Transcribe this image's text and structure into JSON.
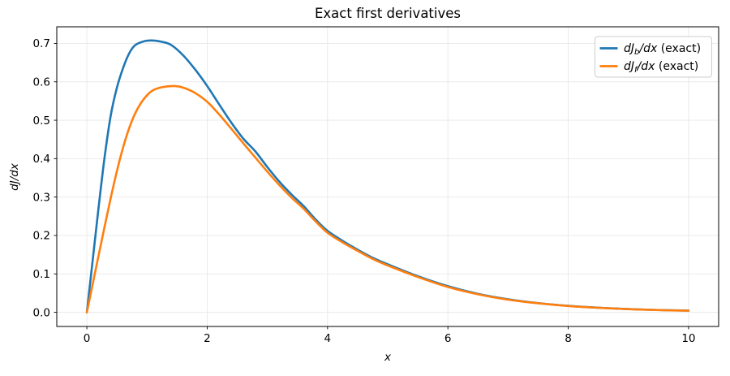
{
  "figure": {
    "background": "#ffffff"
  },
  "chart_data": {
    "type": "line",
    "title": "Exact first derivatives",
    "xlabel": "x",
    "ylabel": "dJ/dx",
    "xlim": [
      -0.5,
      10.5
    ],
    "ylim": [
      -0.0368,
      0.7432
    ],
    "x_ticks": [
      0,
      2,
      4,
      6,
      8,
      10
    ],
    "y_ticks": [
      "0.0",
      "0.1",
      "0.2",
      "0.3",
      "0.4",
      "0.5",
      "0.6",
      "0.7"
    ],
    "grid": true,
    "grid_color": "#e8e8e8",
    "axes_edge_color": "#000000",
    "legend_position": "upper right",
    "legend_edge_color": "#cccccc",
    "legend_background": "#ffffff",
    "series": [
      {
        "name": "dJb/dx (exact)",
        "color": "#1f77b4",
        "line_width": 2.6,
        "label_parts": [
          {
            "t": "dJ",
            "italic": true
          },
          {
            "t": "b",
            "italic": true,
            "sub": true
          },
          {
            "t": "/dx",
            "italic": true
          },
          {
            "t": " (exact)",
            "italic": false
          }
        ],
        "points": [
          [
            0.0,
            0.0
          ],
          [
            0.1,
            0.14
          ],
          [
            0.2,
            0.28
          ],
          [
            0.3,
            0.41
          ],
          [
            0.4,
            0.515
          ],
          [
            0.5,
            0.585
          ],
          [
            0.6,
            0.635
          ],
          [
            0.7,
            0.673
          ],
          [
            0.8,
            0.695
          ],
          [
            0.95,
            0.7055
          ],
          [
            1.1,
            0.7075
          ],
          [
            1.25,
            0.704
          ],
          [
            1.4,
            0.696
          ],
          [
            1.6,
            0.669
          ],
          [
            1.8,
            0.632
          ],
          [
            2.0,
            0.589
          ],
          [
            2.2,
            0.541
          ],
          [
            2.4,
            0.494
          ],
          [
            2.6,
            0.452
          ],
          [
            2.8,
            0.419
          ],
          [
            3.0,
            0.378
          ],
          [
            3.2,
            0.34
          ],
          [
            3.4,
            0.307
          ],
          [
            3.6,
            0.277
          ],
          [
            3.8,
            0.242
          ],
          [
            4.0,
            0.212
          ],
          [
            4.25,
            0.186
          ],
          [
            4.5,
            0.163
          ],
          [
            4.75,
            0.142
          ],
          [
            5.0,
            0.125
          ],
          [
            5.5,
            0.094
          ],
          [
            6.0,
            0.068
          ],
          [
            6.5,
            0.048
          ],
          [
            7.0,
            0.034
          ],
          [
            7.5,
            0.024
          ],
          [
            8.0,
            0.017
          ],
          [
            8.5,
            0.012
          ],
          [
            9.0,
            0.0085
          ],
          [
            9.5,
            0.006
          ],
          [
            10.0,
            0.0045
          ]
        ]
      },
      {
        "name": "dJf/dx (exact)",
        "color": "#ff7f0e",
        "line_width": 2.6,
        "label_parts": [
          {
            "t": "dJ",
            "italic": true
          },
          {
            "t": "f",
            "italic": true,
            "sub": true
          },
          {
            "t": "/dx",
            "italic": true
          },
          {
            "t": " (exact)",
            "italic": false
          }
        ],
        "points": [
          [
            0.0,
            0.0
          ],
          [
            0.1,
            0.076
          ],
          [
            0.2,
            0.152
          ],
          [
            0.3,
            0.227
          ],
          [
            0.4,
            0.3
          ],
          [
            0.5,
            0.368
          ],
          [
            0.6,
            0.428
          ],
          [
            0.7,
            0.478
          ],
          [
            0.8,
            0.517
          ],
          [
            0.9,
            0.545
          ],
          [
            1.0,
            0.565
          ],
          [
            1.1,
            0.578
          ],
          [
            1.25,
            0.586
          ],
          [
            1.45,
            0.589
          ],
          [
            1.6,
            0.585
          ],
          [
            1.8,
            0.571
          ],
          [
            2.0,
            0.548
          ],
          [
            2.2,
            0.515
          ],
          [
            2.4,
            0.478
          ],
          [
            2.6,
            0.44
          ],
          [
            2.8,
            0.403
          ],
          [
            3.0,
            0.366
          ],
          [
            3.2,
            0.331
          ],
          [
            3.4,
            0.299
          ],
          [
            3.6,
            0.27
          ],
          [
            3.8,
            0.237
          ],
          [
            4.0,
            0.207
          ],
          [
            4.25,
            0.182
          ],
          [
            4.5,
            0.16
          ],
          [
            4.75,
            0.139
          ],
          [
            5.0,
            0.122
          ],
          [
            5.5,
            0.092
          ],
          [
            6.0,
            0.066
          ],
          [
            6.5,
            0.047
          ],
          [
            7.0,
            0.033
          ],
          [
            7.5,
            0.0235
          ],
          [
            8.0,
            0.0165
          ],
          [
            8.5,
            0.0118
          ],
          [
            9.0,
            0.0083
          ],
          [
            9.5,
            0.0058
          ],
          [
            10.0,
            0.0043
          ]
        ]
      }
    ]
  }
}
